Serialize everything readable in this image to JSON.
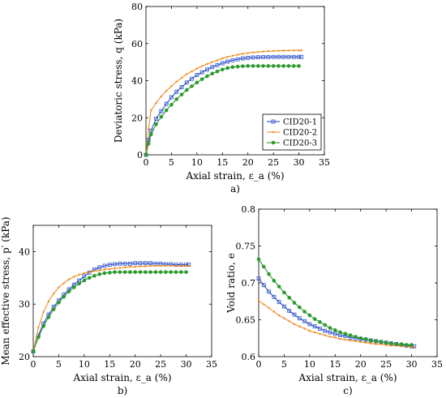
{
  "colors": {
    "CID20-1": "#2a4fc9",
    "CID20-2": "#f28c1e",
    "CID20-3": "#2e9a2e"
  },
  "chart_data": [
    {
      "id": "a",
      "type": "line",
      "panel_label": "a)",
      "xlabel": "Axial strain, ε_a (%)",
      "ylabel": "Deviatoric stress, q (kPa)",
      "xlim": [
        0,
        35
      ],
      "ylim": [
        0,
        80
      ],
      "xticks": [
        0,
        5,
        10,
        15,
        20,
        25,
        30,
        35
      ],
      "yticks": [
        0,
        20,
        40,
        60,
        80
      ],
      "legend": {
        "placement": "bottom-right",
        "entries": [
          "CID20-1",
          "CID20-2",
          "CID20-3"
        ]
      },
      "series": [
        {
          "name": "CID20-1",
          "marker": "square",
          "x": [
            0,
            0.5,
            1,
            2,
            3,
            4,
            5,
            6,
            7,
            8,
            9,
            10,
            11,
            12,
            13,
            14,
            15,
            16,
            17,
            18,
            19,
            20,
            21,
            22,
            23,
            24,
            25,
            26,
            27,
            28,
            29,
            30,
            30.5
          ],
          "y": [
            0,
            8,
            13,
            19.5,
            23.5,
            27.5,
            31,
            34,
            36.5,
            39,
            41,
            43,
            44.5,
            46,
            47.3,
            48.4,
            49.4,
            50.3,
            51,
            51.5,
            52,
            52.3,
            52.5,
            52.6,
            52.7,
            52.7,
            52.8,
            52.8,
            52.8,
            52.8,
            52.8,
            52.8,
            52.8
          ]
        },
        {
          "name": "CID20-2",
          "marker": "dot",
          "x": [
            0,
            0.5,
            1,
            2,
            3,
            4,
            5,
            6,
            7,
            8,
            9,
            10,
            11,
            12,
            13,
            14,
            15,
            16,
            17,
            18,
            19,
            20,
            21,
            22,
            23,
            24,
            25,
            26,
            27,
            28,
            29,
            30,
            30.5
          ],
          "y": [
            0,
            14,
            24,
            28,
            31.5,
            34.5,
            37,
            39.5,
            41.5,
            43.5,
            45,
            46.5,
            47.8,
            49,
            50,
            51,
            52,
            52.8,
            53.4,
            54,
            54.5,
            54.9,
            55.2,
            55.5,
            55.7,
            55.9,
            56,
            56.1,
            56.2,
            56.2,
            56.3,
            56.3,
            56.3
          ]
        },
        {
          "name": "CID20-3",
          "marker": "circle",
          "x": [
            0,
            0.5,
            1,
            2,
            3,
            4,
            5,
            6,
            7,
            8,
            9,
            10,
            11,
            12,
            13,
            14,
            15,
            16,
            17,
            18,
            19,
            20,
            21,
            22,
            23,
            24,
            25,
            26,
            27,
            28,
            29,
            30
          ],
          "y": [
            0,
            6,
            11,
            16.5,
            20.5,
            24,
            27,
            30,
            32.5,
            35,
            37,
            39,
            40.8,
            42.4,
            43.8,
            45,
            46,
            46.8,
            47.3,
            47.6,
            47.8,
            47.9,
            47.9,
            47.9,
            47.9,
            47.9,
            47.9,
            47.9,
            47.9,
            47.9,
            47.9,
            47.9
          ]
        }
      ]
    },
    {
      "id": "b",
      "type": "line",
      "panel_label": "b)",
      "xlabel": "Axial strain, ε_a (%)",
      "ylabel": "Mean effective stress, p′ (kPa)",
      "xlim": [
        0,
        35
      ],
      "ylim": [
        20,
        45
      ],
      "xticks": [
        0,
        5,
        10,
        15,
        20,
        25,
        30,
        35
      ],
      "yticks": [
        20,
        30,
        40
      ],
      "series": [
        {
          "name": "CID20-1",
          "marker": "square",
          "x": [
            0,
            1,
            2,
            3,
            4,
            5,
            6,
            7,
            8,
            9,
            10,
            11,
            12,
            13,
            14,
            15,
            16,
            17,
            18,
            19,
            20,
            21,
            22,
            23,
            24,
            25,
            26,
            27,
            28,
            29,
            30,
            30.5
          ],
          "y": [
            21,
            24,
            26.3,
            28,
            29.5,
            30.7,
            31.8,
            32.8,
            33.7,
            34.5,
            35.3,
            36,
            36.6,
            37,
            37.3,
            37.5,
            37.6,
            37.7,
            37.7,
            37.7,
            37.8,
            37.8,
            37.8,
            37.8,
            37.7,
            37.7,
            37.6,
            37.6,
            37.5,
            37.5,
            37.5,
            37.5
          ]
        },
        {
          "name": "CID20-2",
          "marker": "dot",
          "x": [
            0,
            1,
            2,
            3,
            4,
            5,
            6,
            7,
            8,
            9,
            10,
            11,
            12,
            13,
            14,
            15,
            16,
            17,
            18,
            19,
            20,
            21,
            22,
            23,
            24,
            25,
            26,
            27,
            28,
            29,
            30,
            30.5
          ],
          "y": [
            21,
            25.5,
            28.5,
            30.5,
            32,
            33.2,
            34,
            34.7,
            35.2,
            35.6,
            35.9,
            36.1,
            36.3,
            36.4,
            36.6,
            36.7,
            36.8,
            36.9,
            37,
            37.1,
            37.1,
            37.2,
            37.2,
            37.3,
            37.3,
            37.3,
            37.3,
            37.3,
            37.3,
            37.3,
            37.3,
            37.3
          ]
        },
        {
          "name": "CID20-3",
          "marker": "circle",
          "x": [
            0,
            1,
            2,
            3,
            4,
            5,
            6,
            7,
            8,
            9,
            10,
            11,
            12,
            13,
            14,
            15,
            16,
            17,
            18,
            19,
            20,
            21,
            22,
            23,
            24,
            25,
            26,
            27,
            28,
            29,
            30
          ],
          "y": [
            21,
            23.7,
            25.8,
            27.5,
            29,
            30.3,
            31.4,
            32.4,
            33.2,
            33.9,
            34.5,
            35,
            35.4,
            35.7,
            35.9,
            36,
            36.1,
            36.1,
            36.1,
            36.1,
            36.1,
            36.1,
            36.1,
            36.1,
            36.1,
            36.1,
            36.1,
            36.1,
            36.1,
            36.1,
            36.1
          ]
        }
      ]
    },
    {
      "id": "c",
      "type": "line",
      "panel_label": "c)",
      "xlabel": "Axial strain, ε_a (%)",
      "ylabel": "Void ratio, e",
      "xlim": [
        0,
        35
      ],
      "ylim": [
        0.6,
        0.8
      ],
      "xticks": [
        0,
        5,
        10,
        15,
        20,
        25,
        30,
        35
      ],
      "yticks": [
        0.6,
        0.65,
        0.7,
        0.75,
        0.8
      ],
      "series": [
        {
          "name": "CID20-1",
          "marker": "square",
          "x": [
            0,
            1,
            2,
            3,
            4,
            5,
            6,
            7,
            8,
            9,
            10,
            11,
            12,
            13,
            14,
            15,
            16,
            17,
            18,
            19,
            20,
            21,
            22,
            23,
            24,
            25,
            26,
            27,
            28,
            29,
            30,
            30.5
          ],
          "y": [
            0.706,
            0.697,
            0.688,
            0.681,
            0.674,
            0.668,
            0.662,
            0.657,
            0.652,
            0.648,
            0.644,
            0.641,
            0.638,
            0.635,
            0.633,
            0.631,
            0.629,
            0.628,
            0.626,
            0.625,
            0.624,
            0.623,
            0.622,
            0.621,
            0.62,
            0.619,
            0.618,
            0.617,
            0.616,
            0.615,
            0.614,
            0.614
          ]
        },
        {
          "name": "CID20-2",
          "marker": "dot",
          "x": [
            0,
            1,
            2,
            3,
            4,
            5,
            6,
            7,
            8,
            9,
            10,
            11,
            12,
            13,
            14,
            15,
            16,
            17,
            18,
            19,
            20,
            21,
            22,
            23,
            24,
            25,
            26,
            27,
            28,
            29,
            30,
            30.5
          ],
          "y": [
            0.676,
            0.671,
            0.666,
            0.661,
            0.656,
            0.652,
            0.648,
            0.644,
            0.641,
            0.638,
            0.635,
            0.633,
            0.631,
            0.629,
            0.627,
            0.626,
            0.624,
            0.623,
            0.622,
            0.621,
            0.62,
            0.619,
            0.618,
            0.617,
            0.617,
            0.616,
            0.615,
            0.615,
            0.614,
            0.614,
            0.613,
            0.613
          ]
        },
        {
          "name": "CID20-3",
          "marker": "circle",
          "x": [
            0,
            1,
            2,
            3,
            4,
            5,
            6,
            7,
            8,
            9,
            10,
            11,
            12,
            13,
            14,
            15,
            16,
            17,
            18,
            19,
            20,
            21,
            22,
            23,
            24,
            25,
            26,
            27,
            28,
            29,
            30
          ],
          "y": [
            0.732,
            0.722,
            0.712,
            0.703,
            0.695,
            0.687,
            0.68,
            0.673,
            0.667,
            0.661,
            0.656,
            0.651,
            0.647,
            0.643,
            0.639,
            0.636,
            0.633,
            0.631,
            0.629,
            0.627,
            0.625,
            0.624,
            0.622,
            0.621,
            0.62,
            0.619,
            0.618,
            0.617,
            0.617,
            0.616,
            0.616
          ]
        }
      ]
    }
  ]
}
